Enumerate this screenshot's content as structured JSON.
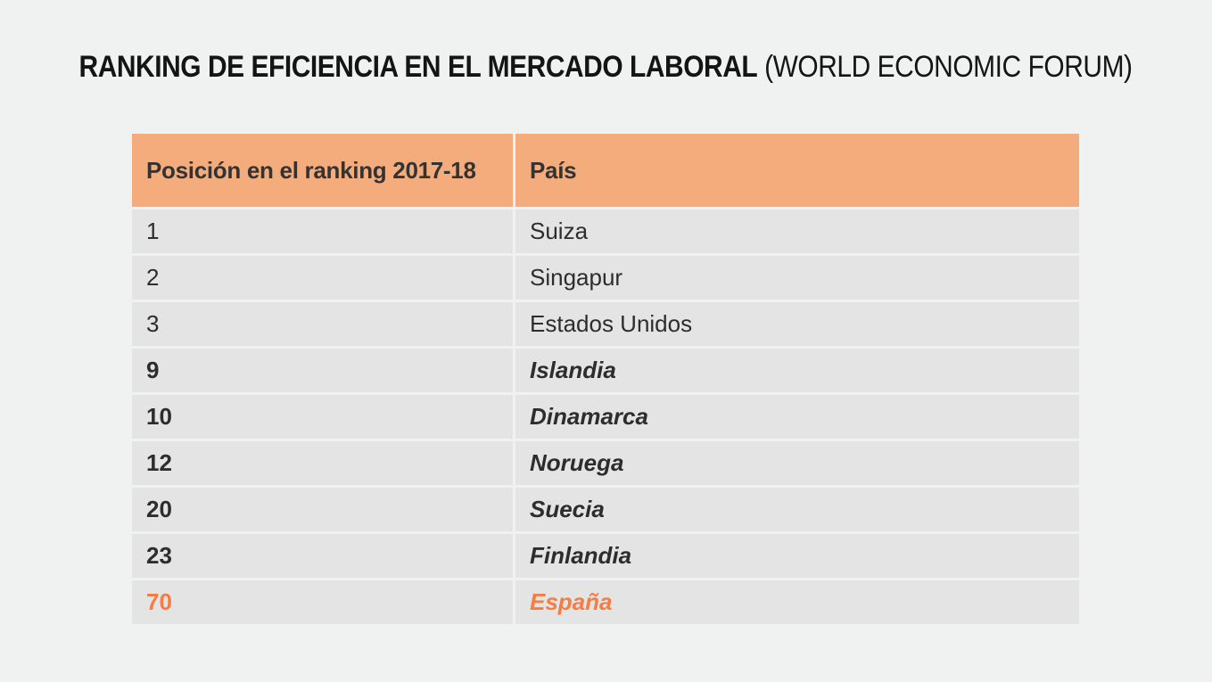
{
  "title": {
    "main": "RANKING DE EFICIENCIA EN EL MERCADO LABORAL",
    "sub": "(WORLD ECONOMIC FORUM)"
  },
  "table": {
    "columns": [
      {
        "label": "Posición en el ranking 2017-18"
      },
      {
        "label": "País"
      }
    ],
    "rows": [
      {
        "position": "1",
        "country": "Suiza",
        "emphasis": "none"
      },
      {
        "position": "2",
        "country": "Singapur",
        "emphasis": "none"
      },
      {
        "position": "3",
        "country": "Estados Unidos",
        "emphasis": "none"
      },
      {
        "position": "9",
        "country": "Islandia",
        "emphasis": "strong"
      },
      {
        "position": "10",
        "country": "Dinamarca",
        "emphasis": "strong"
      },
      {
        "position": "12",
        "country": "Noruega",
        "emphasis": "strong"
      },
      {
        "position": "20",
        "country": "Suecia",
        "emphasis": "strong"
      },
      {
        "position": "23",
        "country": "Finlandia",
        "emphasis": "strong"
      },
      {
        "position": "70",
        "country": "España",
        "emphasis": "accent"
      }
    ]
  },
  "colors": {
    "page_bg": "#f0f1f1",
    "header_bg": "#f5ac7c",
    "row_bg": "#e4e4e4",
    "text_dark": "#2d2d2d",
    "header_text": "#333333",
    "title_text": "#141414",
    "accent_orange": "#f57d44"
  },
  "chart_data": {
    "type": "table",
    "title": "RANKING DE EFICIENCIA EN EL MERCADO LABORAL (WORLD ECONOMIC FORUM)",
    "columns": [
      "Posición en el ranking 2017-18",
      "País"
    ],
    "rows": [
      [
        "1",
        "Suiza"
      ],
      [
        "2",
        "Singapur"
      ],
      [
        "3",
        "Estados Unidos"
      ],
      [
        "9",
        "Islandia"
      ],
      [
        "10",
        "Dinamarca"
      ],
      [
        "12",
        "Noruega"
      ],
      [
        "20",
        "Suecia"
      ],
      [
        "23",
        "Finlandia"
      ],
      [
        "70",
        "España"
      ]
    ],
    "bold_highlighted_rows": [
      "Islandia",
      "Dinamarca",
      "Noruega",
      "Suecia",
      "Finlandia"
    ],
    "accent_highlighted_row": "España",
    "legend_position": "none",
    "grid": "off"
  }
}
